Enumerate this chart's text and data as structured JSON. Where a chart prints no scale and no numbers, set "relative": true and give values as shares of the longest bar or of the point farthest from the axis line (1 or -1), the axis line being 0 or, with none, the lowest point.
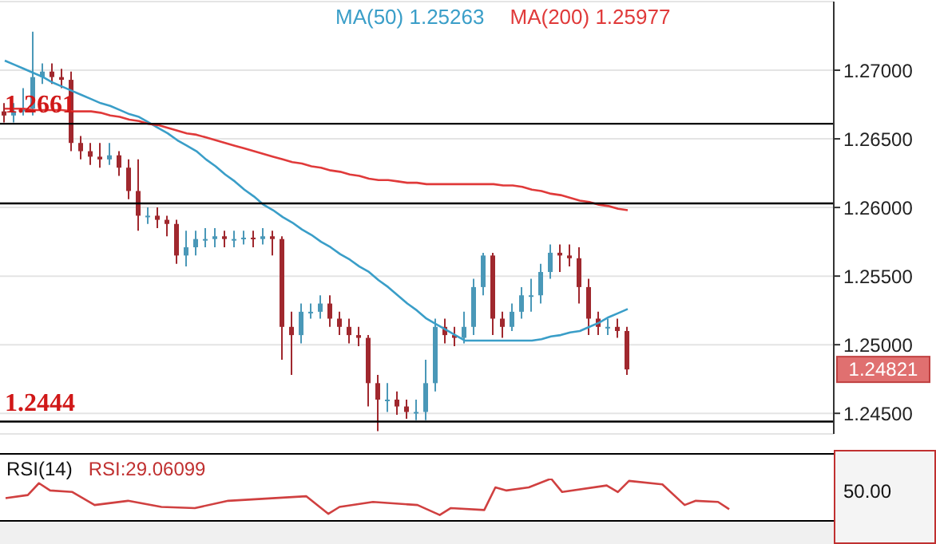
{
  "chart_data": [
    {
      "type": "candlestick",
      "categories": [
        null,
        null,
        null,
        null,
        null,
        null,
        null,
        null,
        null,
        null,
        null,
        null,
        null,
        null,
        null,
        null,
        null,
        null,
        null,
        null,
        null,
        null,
        null,
        null,
        null,
        null,
        null,
        null,
        null,
        null,
        null,
        null,
        null,
        null,
        null,
        null,
        null,
        null,
        null,
        null,
        null,
        null,
        null,
        null,
        null,
        null,
        null,
        null,
        null,
        null,
        null,
        null,
        null,
        null,
        null,
        null,
        null,
        null,
        null,
        null,
        null,
        null,
        null,
        null,
        null,
        null
      ],
      "ohlc": [
        [
          1.267,
          1.2676,
          1.2662,
          1.2667
        ],
        [
          1.2667,
          1.2676,
          1.2662,
          1.267
        ],
        [
          1.267,
          1.2687,
          1.2667,
          1.2672
        ],
        [
          1.2672,
          1.2728,
          1.2667,
          1.2695
        ],
        [
          1.2695,
          1.2705,
          1.269,
          1.2699
        ],
        [
          1.2699,
          1.2705,
          1.269,
          1.2695
        ],
        [
          1.2695,
          1.2701,
          1.2687,
          1.2693
        ],
        [
          1.2693,
          1.2699,
          1.2641,
          1.2647
        ],
        [
          1.2647,
          1.2652,
          1.2635,
          1.2641
        ],
        [
          1.2641,
          1.2647,
          1.2631,
          1.2637
        ],
        [
          1.2637,
          1.2647,
          1.2629,
          1.2635
        ],
        [
          1.2635,
          1.2647,
          1.2631,
          1.2638
        ],
        [
          1.2638,
          1.2641,
          1.2623,
          1.2629
        ],
        [
          1.2629,
          1.2635,
          1.2606,
          1.2612
        ],
        [
          1.2612,
          1.2635,
          1.2583,
          1.2594
        ],
        [
          1.2594,
          1.26,
          1.2588,
          1.2594
        ],
        [
          1.2594,
          1.26,
          1.2585,
          1.2591
        ],
        [
          1.2591,
          1.2594,
          1.2579,
          1.2588
        ],
        [
          1.2588,
          1.2591,
          1.2559,
          1.2565
        ],
        [
          1.2565,
          1.2583,
          1.2557,
          1.2571
        ],
        [
          1.2571,
          1.2583,
          1.2565,
          1.2577
        ],
        [
          1.2577,
          1.2585,
          1.2571,
          1.2577
        ],
        [
          1.2577,
          1.2585,
          1.2571,
          1.2579
        ],
        [
          1.2579,
          1.2583,
          1.2571,
          1.2577
        ],
        [
          1.2577,
          1.2583,
          1.2571,
          1.2577
        ],
        [
          1.2577,
          1.2583,
          1.2573,
          1.2578
        ],
        [
          1.2578,
          1.2583,
          1.2571,
          1.2577
        ],
        [
          1.2577,
          1.2585,
          1.2573,
          1.2579
        ],
        [
          1.2579,
          1.2583,
          1.2565,
          1.2577
        ],
        [
          1.2577,
          1.2579,
          1.2489,
          1.2513
        ],
        [
          1.2513,
          1.2524,
          1.2478,
          1.2507
        ],
        [
          1.2507,
          1.253,
          1.2501,
          1.2524
        ],
        [
          1.2524,
          1.253,
          1.2519,
          1.2524
        ],
        [
          1.2524,
          1.2536,
          1.2519,
          1.253
        ],
        [
          1.253,
          1.2536,
          1.2513,
          1.2519
        ],
        [
          1.2519,
          1.2524,
          1.2507,
          1.2513
        ],
        [
          1.2513,
          1.2519,
          1.2501,
          1.2507
        ],
        [
          1.2507,
          1.2513,
          1.2499,
          1.2505
        ],
        [
          1.2505,
          1.2507,
          1.2455,
          1.2472
        ],
        [
          1.2472,
          1.2478,
          1.2437,
          1.246
        ],
        [
          1.246,
          1.2472,
          1.2451,
          1.246
        ],
        [
          1.246,
          1.2466,
          1.2449,
          1.2455
        ],
        [
          1.2455,
          1.246,
          1.2446,
          1.2451
        ],
        [
          1.2451,
          1.246,
          1.2445,
          1.2451
        ],
        [
          1.2451,
          1.2489,
          1.2445,
          1.2472
        ],
        [
          1.2472,
          1.2519,
          1.2466,
          1.2513
        ],
        [
          1.2513,
          1.2519,
          1.2501,
          1.2507
        ],
        [
          1.2507,
          1.2513,
          1.2499,
          1.2505
        ],
        [
          1.2505,
          1.2524,
          1.2501,
          1.2513
        ],
        [
          1.2513,
          1.2548,
          1.2507,
          1.2542
        ],
        [
          1.2542,
          1.2567,
          1.2536,
          1.2565
        ],
        [
          1.2565,
          1.2567,
          1.2507,
          1.2519
        ],
        [
          1.2519,
          1.2524,
          1.2505,
          1.2513
        ],
        [
          1.2513,
          1.253,
          1.251,
          1.2524
        ],
        [
          1.2524,
          1.2542,
          1.2519,
          1.2536
        ],
        [
          1.2536,
          1.2548,
          1.2524,
          1.2536
        ],
        [
          1.2536,
          1.2559,
          1.253,
          1.2553
        ],
        [
          1.2553,
          1.2573,
          1.2548,
          1.2567
        ],
        [
          1.2567,
          1.2573,
          1.2553,
          1.2565
        ],
        [
          1.2565,
          1.2573,
          1.2557,
          1.2563
        ],
        [
          1.2563,
          1.2571,
          1.253,
          1.2542
        ],
        [
          1.2542,
          1.2548,
          1.2507,
          1.2519
        ],
        [
          1.2519,
          1.2524,
          1.2507,
          1.2513
        ],
        [
          1.2513,
          1.2519,
          1.2507,
          1.2513
        ],
        [
          1.2513,
          1.2519,
          1.2505,
          1.251
        ],
        [
          1.251,
          1.2513,
          1.2478,
          1.2482
        ]
      ],
      "colors": [
        "#a0282e",
        "#4a98b8",
        "#4a98b8",
        "#4a98b8",
        "#4a98b8",
        "#a0282e",
        "#a0282e",
        "#a0282e",
        "#a0282e",
        "#a0282e",
        "#a0282e",
        "#4a98b8",
        "#a0282e",
        "#a0282e",
        "#a0282e",
        "#4a98b8",
        "#a0282e",
        "#a0282e",
        "#a0282e",
        "#4a98b8",
        "#4a98b8",
        "#4a98b8",
        "#4a98b8",
        "#a0282e",
        "#4a98b8",
        "#4a98b8",
        "#a0282e",
        "#4a98b8",
        "#a0282e",
        "#a0282e",
        "#a0282e",
        "#4a98b8",
        "#4a98b8",
        "#4a98b8",
        "#a0282e",
        "#a0282e",
        "#a0282e",
        "#a0282e",
        "#a0282e",
        "#a0282e",
        "#4a98b8",
        "#a0282e",
        "#a0282e",
        "#4a98b8",
        "#4a98b8",
        "#4a98b8",
        "#a0282e",
        "#a0282e",
        "#4a98b8",
        "#4a98b8",
        "#4a98b8",
        "#a0282e",
        "#a0282e",
        "#4a98b8",
        "#4a98b8",
        "#4a98b8",
        "#4a98b8",
        "#4a98b8",
        "#a0282e",
        "#a0282e",
        "#a0282e",
        "#a0282e",
        "#a0282e",
        "#4a98b8",
        "#a0282e",
        "#a0282e"
      ],
      "series": [
        {
          "type": "line",
          "name": "MA(50) 1.25263",
          "color": "#3a9ec8",
          "values": [
            1.2707,
            1.2704,
            1.2701,
            1.2698,
            1.2695,
            1.2691,
            1.2688,
            1.2685,
            1.2682,
            1.2679,
            1.2676,
            1.2674,
            1.2671,
            1.2668,
            1.2666,
            1.2662,
            1.2658,
            1.2654,
            1.2649,
            1.2645,
            1.2641,
            1.2635,
            1.263,
            1.2624,
            1.2619,
            1.2613,
            1.2608,
            1.2602,
            1.2598,
            1.2593,
            1.2589,
            1.2584,
            1.258,
            1.2575,
            1.2571,
            1.2566,
            1.2562,
            1.2557,
            1.2553,
            1.2547,
            1.2542,
            1.2536,
            1.253,
            1.2525,
            1.2519,
            1.2515,
            1.2511,
            1.2507,
            1.2503,
            1.2503,
            1.2503,
            1.2503,
            1.2503,
            1.2503,
            1.2503,
            1.2503,
            1.2504,
            1.2506,
            1.2507,
            1.2509,
            1.251,
            1.2513,
            1.2516,
            1.252,
            1.2523,
            1.2526
          ]
        },
        {
          "type": "line",
          "name": "MA(200) 1.25977",
          "color": "#e03a3a",
          "values": [
            1.2672,
            1.2672,
            1.2672,
            1.2671,
            1.2671,
            1.2671,
            1.2671,
            1.267,
            1.267,
            1.267,
            1.2669,
            1.2667,
            1.2666,
            1.2664,
            1.2663,
            1.2661,
            1.266,
            1.2658,
            1.2656,
            1.2654,
            1.2653,
            1.2651,
            1.2649,
            1.2647,
            1.2645,
            1.2643,
            1.2641,
            1.2639,
            1.2637,
            1.2635,
            1.2633,
            1.2632,
            1.263,
            1.2629,
            1.2627,
            1.2626,
            1.2624,
            1.2623,
            1.2621,
            1.262,
            1.262,
            1.2619,
            1.2618,
            1.2618,
            1.2617,
            1.2617,
            1.2617,
            1.2617,
            1.2617,
            1.2617,
            1.2617,
            1.2617,
            1.2616,
            1.2616,
            1.2615,
            1.2613,
            1.2612,
            1.261,
            1.2609,
            1.2607,
            1.2605,
            1.2604,
            1.2602,
            1.2601,
            1.2599,
            1.2598
          ]
        }
      ],
      "ylim": [
        1.2435,
        1.275
      ],
      "yticks": [
        {
          "value": 1.245,
          "label": "1.24500"
        },
        {
          "value": 1.25,
          "label": "1.25000"
        },
        {
          "value": 1.255,
          "label": "1.25500"
        },
        {
          "value": 1.26,
          "label": "1.26000"
        },
        {
          "value": 1.265,
          "label": "1.26500"
        },
        {
          "value": 1.27,
          "label": "1.27000"
        }
      ],
      "grid": "y",
      "legend": "top",
      "tick_labels": "y",
      "ref_lines": [
        {
          "axis": "y",
          "value": 1.2661,
          "label": "1.2661",
          "color": "#000000"
        },
        {
          "axis": "y",
          "value": 1.2603,
          "label": null,
          "color": "#000000"
        },
        {
          "axis": "y",
          "value": 1.2444,
          "label": "1.2444",
          "color": "#000000"
        }
      ],
      "annotations": [
        "1.24821"
      ]
    },
    {
      "type": "line",
      "title": "RSI(14)",
      "relative": true,
      "tick_labels": false,
      "categories": [
        null,
        null,
        null,
        null,
        null,
        null,
        null,
        null,
        null,
        null,
        null,
        null,
        null,
        null,
        null,
        null,
        null,
        null,
        null,
        null,
        null,
        null,
        null,
        null,
        null,
        null,
        null,
        null,
        null,
        null,
        null,
        null,
        null,
        null,
        null,
        null,
        null,
        null,
        null,
        null,
        null,
        null,
        null,
        null,
        null,
        null,
        null,
        null,
        null,
        null,
        null,
        null,
        null,
        null,
        null,
        null,
        null,
        null,
        null,
        null,
        null,
        null,
        null,
        null,
        null,
        null
      ],
      "series": [
        {
          "color": "#d04040",
          "values": [
            0.49,
            null,
            0.57,
            0.88,
            0.69,
            null,
            0.65,
            null,
            0.31,
            null,
            null,
            0.42,
            null,
            null,
            0.26,
            null,
            null,
            0.23,
            null,
            null,
            0.42,
            null,
            null,
            null,
            null,
            null,
            null,
            0.54,
            null,
            0.08,
            0.26,
            null,
            null,
            0.39,
            null,
            null,
            null,
            0.31,
            null,
            0.05,
            0.23,
            null,
            null,
            0.18,
            0.77,
            0.69,
            null,
            0.77,
            null,
            1.0,
            0.65,
            null,
            null,
            null,
            0.82,
            0.65,
            0.94,
            null,
            null,
            0.85,
            null,
            0.31,
            0.42,
            null,
            0.39,
            0.2
          ]
        }
      ],
      "annotations": [
        "RSI:29.06099",
        "50.00"
      ]
    }
  ]
}
